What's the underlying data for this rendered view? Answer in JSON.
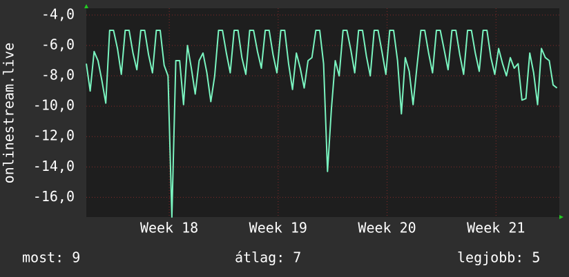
{
  "chart_data": {
    "type": "line",
    "y_label": "onlinestream.live",
    "xlim": [
      0,
      30.4
    ],
    "xticks": [
      {
        "value": 5.33,
        "label": "Week 18"
      },
      {
        "value": 12.33,
        "label": "Week 19"
      },
      {
        "value": 19.33,
        "label": "Week 20"
      },
      {
        "value": 26.33,
        "label": "Week 21"
      }
    ],
    "ylim": [
      -17.3,
      -3.55
    ],
    "yticks": [
      {
        "value": -4,
        "label": "-4,0"
      },
      {
        "value": -6,
        "label": "-6,0"
      },
      {
        "value": -8,
        "label": "-8,0"
      },
      {
        "value": -10,
        "label": "-10,0"
      },
      {
        "value": -12,
        "label": "-12,0"
      },
      {
        "value": -14,
        "label": "-14,0"
      },
      {
        "value": -16,
        "label": "-16,0"
      }
    ],
    "grid": true,
    "x": [
      0,
      0.25,
      0.5,
      0.75,
      1,
      1.25,
      1.5,
      1.75,
      2,
      2.25,
      2.5,
      2.75,
      3,
      3.25,
      3.5,
      3.75,
      4,
      4.25,
      4.5,
      4.75,
      5,
      5.25,
      5.5,
      5.75,
      6,
      6.25,
      6.5,
      6.75,
      7,
      7.25,
      7.5,
      7.75,
      8,
      8.25,
      8.5,
      8.75,
      9,
      9.25,
      9.5,
      9.75,
      10,
      10.25,
      10.5,
      10.75,
      11,
      11.25,
      11.5,
      11.75,
      12,
      12.25,
      12.5,
      12.75,
      13,
      13.25,
      13.5,
      13.75,
      14,
      14.25,
      14.5,
      14.75,
      15,
      15.25,
      15.5,
      15.75,
      16,
      16.25,
      16.5,
      16.75,
      17,
      17.25,
      17.5,
      17.75,
      18,
      18.25,
      18.5,
      18.75,
      19,
      19.25,
      19.5,
      19.75,
      20,
      20.25,
      20.5,
      20.75,
      21,
      21.25,
      21.5,
      21.75,
      22,
      22.25,
      22.5,
      22.75,
      23,
      23.25,
      23.5,
      23.75,
      24,
      24.25,
      24.5,
      24.75,
      25,
      25.25,
      25.5,
      25.75,
      26,
      26.25,
      26.5,
      26.75,
      27,
      27.25,
      27.5,
      27.75,
      28,
      28.25,
      28.5,
      28.75,
      29,
      29.25,
      29.5,
      29.75,
      30,
      30.25
    ],
    "series": [
      {
        "name": "onlinestream.live",
        "color": "#7af5c0",
        "values": [
          -7.2,
          -9.0,
          -6.4,
          -7.0,
          -8.3,
          -9.8,
          -5.0,
          -5.0,
          -6.2,
          -7.9,
          -5.0,
          -5.0,
          -6.5,
          -7.6,
          -5.0,
          -5.0,
          -6.6,
          -7.8,
          -5.0,
          -5.0,
          -7.3,
          -8.0,
          -17.3,
          -7.0,
          -7.0,
          -9.9,
          -6.0,
          -7.5,
          -9.2,
          -7.0,
          -6.5,
          -7.8,
          -9.7,
          -8.0,
          -5.0,
          -5.0,
          -6.5,
          -7.8,
          -5.0,
          -5.0,
          -6.8,
          -7.9,
          -5.0,
          -5.0,
          -6.4,
          -7.5,
          -5.0,
          -5.0,
          -6.6,
          -7.8,
          -5.0,
          -5.0,
          -7.2,
          -8.9,
          -6.5,
          -7.5,
          -8.8,
          -7.0,
          -6.8,
          -5.0,
          -5.0,
          -7.2,
          -14.3,
          -10.2,
          -7.0,
          -8.0,
          -5.0,
          -5.0,
          -6.3,
          -7.8,
          -5.0,
          -5.0,
          -6.7,
          -8.0,
          -5.0,
          -5.0,
          -6.4,
          -7.9,
          -5.0,
          -5.0,
          -7.0,
          -10.5,
          -6.8,
          -7.7,
          -9.9,
          -7.4,
          -5.0,
          -5.0,
          -6.5,
          -7.8,
          -5.0,
          -5.0,
          -6.3,
          -7.6,
          -5.0,
          -5.0,
          -6.6,
          -7.9,
          -5.0,
          -5.0,
          -6.5,
          -7.7,
          -5.0,
          -5.0,
          -6.8,
          -7.9,
          -6.2,
          -7.2,
          -8.0,
          -6.8,
          -7.5,
          -7.2,
          -9.6,
          -9.5,
          -6.5,
          -7.8,
          -9.9,
          -6.2,
          -6.8,
          -7.0,
          -8.6,
          -8.8
        ]
      }
    ],
    "footer": {
      "now": "most: 9",
      "average": "átlag: 7",
      "best": "legjobb: 5"
    }
  }
}
